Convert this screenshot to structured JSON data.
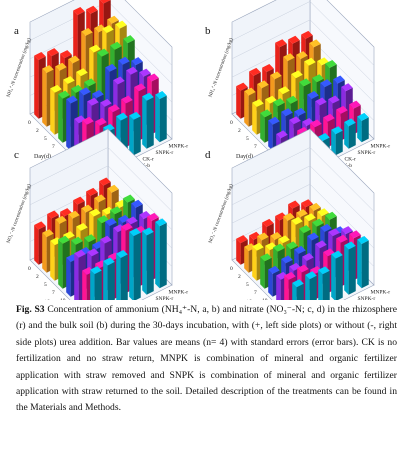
{
  "figure": {
    "panels": [
      {
        "letter": "a",
        "ylabel": "NH₄⁺-N concentration (mg/kg)",
        "xlabel": "Day(d)",
        "tlabel": "Treatment",
        "days": [
          "0",
          "2",
          "5",
          "7",
          "10",
          "15",
          "20",
          "30"
        ],
        "treatments": [
          "CK-b",
          "SNPK-b",
          "MNPK-b",
          "CK-r",
          "SNPK-r",
          "MNPK-r"
        ]
      },
      {
        "letter": "b",
        "ylabel": "NH₄⁺-N concentration (mg/kg)",
        "xlabel": "Day(d)",
        "tlabel": "Treatment",
        "days": [
          "0",
          "2",
          "5",
          "7",
          "10",
          "15",
          "20",
          "30"
        ],
        "treatments": [
          "CK-b",
          "SNPK-b",
          "MNPK-b",
          "CK-r",
          "SNPK-r",
          "MNPK-r"
        ]
      },
      {
        "letter": "c",
        "ylabel": "NO₃⁻-N concentration (mg/kg)",
        "xlabel": "Day(d)",
        "tlabel": "Treatment",
        "days": [
          "0",
          "2",
          "5",
          "7",
          "10",
          "15",
          "20",
          "30"
        ],
        "treatments": [
          "CK-b",
          "SNPK-b",
          "MNPK-b",
          "CK-r",
          "SNPK-r",
          "MNPK-r"
        ]
      },
      {
        "letter": "d",
        "ylabel": "NO₃⁻-N concentration (mg/kg)",
        "xlabel": "Day(d)",
        "tlabel": "Treatment",
        "days": [
          "0",
          "2",
          "5",
          "7",
          "10",
          "15",
          "20",
          "30"
        ],
        "treatments": [
          "CK-b",
          "SNPK-b",
          "MNPK-b",
          "CK-r",
          "SNPK-r",
          "MNPK-r"
        ]
      }
    ],
    "series_colors": [
      "#e8231b",
      "#f39a1e",
      "#ffd11a",
      "#33b030",
      "#2b47d6",
      "#8a2be2",
      "#ff1493",
      "#00a6c8"
    ]
  },
  "caption": {
    "label": "Fig. S3",
    "text": " Concentration of ammonium (NH₄⁺-N, a, b) and nitrate (NO₃⁻-N; c, d) in the rhizosphere (r) and the bulk soil (b) during the 30-days incubation, with (+, left side plots) or without (-, right side plots) urea addition. Bar values are means (n= 4) with standard errors (error bars). CK is no fertilization and no straw return, MNPK is combination of mineral and organic fertilizer application with straw removed and SNPK is combination of mineral and organic fertilizer application with straw returned to the soil. Detailed description of the treatments can be found in the Materials and Methods."
  }
}
